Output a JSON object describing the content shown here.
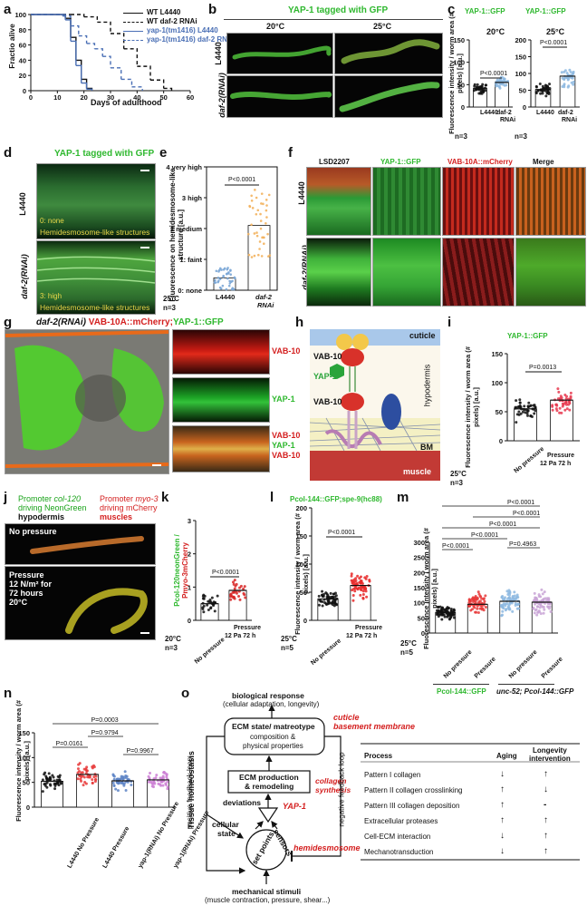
{
  "panels": {
    "a": "a",
    "b": "b",
    "c": "c",
    "d": "d",
    "e": "e",
    "f": "f",
    "g": "g",
    "h": "h",
    "i": "i",
    "j": "j",
    "k": "k",
    "l": "l",
    "m": "m",
    "n": "n",
    "o": "o"
  },
  "a": {
    "ylabel": "Fractio alive",
    "xlabel": "Days of adulthood",
    "legend": [
      "WT L4440",
      "WT daf-2 RNAi",
      "yap-1(tm1416) L4440",
      "yap-1(tm1416) daf-2 RNAi"
    ]
  },
  "b": {
    "title": "YAP-1 tagged with GFP",
    "col1": "20°C",
    "col2": "25°C",
    "row1": "L4440",
    "row2": "daf-2(RNAi)"
  },
  "c": {
    "title1": "YAP-1::GFP",
    "title2": "YAP-1::GFP",
    "sub1": "20°C",
    "sub2": "25°C",
    "ylabel": "Fluorescence intensity / worm area (# pixels) [a.u.]",
    "p1": "P<0.0001",
    "p2": "P<0.0001",
    "x1": "L4440",
    "x2": "daf-2 RNAi",
    "x3": "L4440",
    "x4": "daf-2 RNAi",
    "n1": "n=3",
    "n2": "n=3"
  },
  "d": {
    "title": "YAP-1 tagged with GFP",
    "row1": "L4440",
    "row2": "daf-2(RNAi)",
    "score1": "0: none",
    "score2": "3: high",
    "struct": "Hemidesmosome-like structures"
  },
  "e": {
    "ylabel": "Fluorescence on hemidesmosome-like structure [a.u.]",
    "levels": [
      "4 very high",
      "3 high",
      "2 medium",
      "1: faint",
      "0: none"
    ],
    "p": "P<0.0001",
    "x1": "L4440",
    "x2": "daf-2 RNAi",
    "temp": "25°C",
    "n": "n=3"
  },
  "f": {
    "cols": [
      "LSD2207",
      "YAP-1::GFP",
      "VAB-10A::mCherry",
      "Merge"
    ],
    "row1": "L4440",
    "row2": "daf-2(RNAi)"
  },
  "g": {
    "title_a": "daf-2(RNAi)",
    "title_b": "VAB-10A::mCherry;",
    "title_c": "YAP-1::GFP",
    "lab1": "VAB-10",
    "lab2": "YAP-1",
    "lab3a": "VAB-10",
    "lab3b": "YAP-1",
    "lab3c": "VAB-10"
  },
  "h": {
    "cuticle": "cuticle",
    "hypodermis": "hypodermis",
    "bm": "BM",
    "muscle": "muscle",
    "vab1": "VAB-10",
    "yap": "YAP-1",
    "vab2": "VAB-10"
  },
  "i": {
    "title": "YAP-1::GFP",
    "ylabel": "Fluorescence intensity / worm area (# pixels) [a.u.]",
    "p": "P=0.0013",
    "x1": "No pressure",
    "x2": "Pressure 12 Pa 72 h",
    "temp": "25°C",
    "n": "n=3"
  },
  "j": {
    "prom1a": "Promoter",
    "prom1b": "col-120",
    "prom1c": "driving NeonGreen",
    "prom1d": "hypodermis",
    "prom2a": "Promoter",
    "prom2b": "myo-3",
    "prom2c": "driving mCherry",
    "prom2d": "muscles",
    "top": "No pressure",
    "bot1": "Pressure",
    "bot2": "12 N/m² for",
    "bot3": "72 hours",
    "bot4": "20°C"
  },
  "k": {
    "ylabel_a": "Pcol-120neonGreen /",
    "ylabel_b": "Pmyo-3mCherry",
    "p": "P<0.0001",
    "x1": "No pressure",
    "x2": "Pressure 12 Pa 72 h",
    "temp": "20°C",
    "n": "n=3"
  },
  "l": {
    "title": "Pcol-144::GFP;spe-9(hc88)",
    "ylabel": "Fluorescence intensity / worm area (# pixels) [a.u.]",
    "p": "P<0.0001",
    "x1": "No pressure",
    "x2": "Pressure 12 Pa 72 h",
    "temp": "25°C",
    "n": "n=5"
  },
  "m": {
    "ylabel": "Fluorescence intensity / worm area (# pixels) [a.u.]",
    "p1": "P<0.0001",
    "p2": "P<0.0001",
    "p3": "P<0.0001",
    "p4": "P=0.4963",
    "p5": "P<0.0001",
    "p6": "P<0.0001",
    "x": [
      "No pressure",
      "Pressure",
      "No pressure",
      "Pressure"
    ],
    "g1": "Pcol-144::GFP",
    "g2": "unc-52; Pcol-144::GFP",
    "temp": "25°C",
    "n": "n=5"
  },
  "n": {
    "ylabel": "Fluorescence intensity / worm area (# pixels) [a.u.]",
    "p1": "P=0.0161",
    "p2": "P=0.9794",
    "p3": "P=0.9967",
    "p4": "P=0.0003",
    "x": [
      "L4440 No Pressure",
      "L4440 Pressure",
      "yap-1(RNAi) No Pressure",
      "yap-1(RNAi) Pressure"
    ]
  },
  "o": {
    "bio1": "biological response",
    "bio2": "(cellular adaptation, longevity)",
    "ecm1": "ECM state/ matreotype",
    "ecm2": "composition &",
    "ecm3": "physical properties",
    "cuticle1": "cuticle",
    "cuticle2": "basement membrane",
    "prod1": "ECM production",
    "prod2": "& remodeling",
    "coll1": "collagen",
    "coll2": "synthesis",
    "dev": "deviations",
    "yap": "YAP-1",
    "cell1": "cellular",
    "cell2": "state",
    "set": "set points",
    "sensors": "sensors",
    "hemi": "hemidesmosome",
    "tissue": "Tissue homeostasis",
    "pos": "positive feedback loop",
    "neg": "negative feedback loop",
    "mech1": "mechanical stimuli",
    "mech2": "(muscle contraction, pressure, shear...)",
    "table": {
      "h1": "Process",
      "h2": "Aging",
      "h3a": "Longevity",
      "h3b": "intervention",
      "rows": [
        {
          "p": "Pattern I collagen",
          "a": "↓",
          "l": "↑"
        },
        {
          "p": "Pattern II collagen crosslinking",
          "a": "↑",
          "l": "↓"
        },
        {
          "p": "Pattern III collagen deposition",
          "a": "↑",
          "l": "-"
        },
        {
          "p": "Extracellular proteases",
          "a": "↑",
          "l": "↑"
        },
        {
          "p": "Cell-ECM interaction",
          "a": "↓",
          "l": "↑"
        },
        {
          "p": "Mechanotransduction",
          "a": "↓",
          "l": "↑"
        }
      ]
    }
  },
  "chart_data": [
    {
      "type": "line",
      "panel": "a",
      "xlabel": "Days of adulthood",
      "ylabel": "Fractio alive",
      "xlim": [
        0,
        60
      ],
      "ylim": [
        0,
        100
      ],
      "x_ticks": [
        0,
        10,
        20,
        30,
        40,
        50,
        60
      ],
      "y_ticks": [
        0,
        20,
        40,
        60,
        80,
        100
      ],
      "series": [
        {
          "name": "WT L4440",
          "color": "#111111",
          "dash": "solid",
          "x": [
            0,
            10,
            13,
            15,
            17,
            19,
            21,
            23
          ],
          "y": [
            100,
            100,
            95,
            70,
            40,
            15,
            3,
            0
          ]
        },
        {
          "name": "WT daf-2 RNAi",
          "color": "#111111",
          "dash": "dashed",
          "x": [
            0,
            15,
            20,
            25,
            30,
            35,
            40,
            45,
            50,
            53
          ],
          "y": [
            100,
            100,
            97,
            90,
            75,
            55,
            32,
            14,
            3,
            0
          ]
        },
        {
          "name": "yap-1(tm1416) L4440",
          "color": "#4a6fb5",
          "dash": "solid",
          "x": [
            0,
            10,
            13,
            15,
            17,
            19,
            21,
            23
          ],
          "y": [
            100,
            100,
            93,
            65,
            33,
            10,
            2,
            0
          ]
        },
        {
          "name": "yap-1(tm1416) daf-2 RNAi",
          "color": "#4a6fb5",
          "dash": "dashed",
          "x": [
            0,
            12,
            15,
            18,
            21,
            24,
            27,
            30,
            34,
            38,
            42
          ],
          "y": [
            100,
            98,
            85,
            72,
            62,
            55,
            45,
            30,
            15,
            5,
            0
          ]
        }
      ]
    },
    {
      "type": "bar",
      "panel": "c-20",
      "categories": [
        "L4440",
        "daf-2 RNAi"
      ],
      "values": [
        42,
        55
      ],
      "ylim": [
        0,
        150
      ],
      "y_ticks": [
        0,
        50,
        100,
        150
      ]
    },
    {
      "type": "bar",
      "panel": "c-25",
      "categories": [
        "L4440",
        "daf-2 RNAi"
      ],
      "values": [
        52,
        92
      ],
      "ylim": [
        0,
        200
      ],
      "y_ticks": [
        0,
        50,
        100,
        150,
        200
      ]
    },
    {
      "type": "bar",
      "panel": "e",
      "categories": [
        "L4440",
        "daf-2 RNAi"
      ],
      "values": [
        0.4,
        2.1
      ],
      "ylim": [
        0,
        4
      ]
    },
    {
      "type": "bar",
      "panel": "i",
      "categories": [
        "No pressure",
        "Pressure 12 Pa 72 h"
      ],
      "values": [
        55,
        70
      ],
      "ylim": [
        0,
        150
      ],
      "y_ticks": [
        0,
        50,
        100,
        150
      ]
    },
    {
      "type": "bar",
      "panel": "k",
      "categories": [
        "No pressure",
        "Pressure 12 Pa 72 h"
      ],
      "values": [
        0.5,
        0.9
      ],
      "ylim": [
        0,
        3
      ],
      "y_ticks": [
        0,
        1,
        2,
        3
      ]
    },
    {
      "type": "bar",
      "panel": "l",
      "categories": [
        "No pressure",
        "Pressure 12 Pa 72 h"
      ],
      "values": [
        38,
        62
      ],
      "ylim": [
        0,
        200
      ],
      "y_ticks": [
        0,
        50,
        100,
        150,
        200
      ]
    },
    {
      "type": "bar",
      "panel": "m",
      "categories": [
        "No pressure",
        "Pressure",
        "No pressure",
        "Pressure"
      ],
      "values": [
        68,
        95,
        105,
        102
      ],
      "ylim": [
        0,
        300
      ],
      "y_ticks": [
        0,
        50,
        100,
        150,
        200,
        250,
        300
      ]
    },
    {
      "type": "bar",
      "panel": "n",
      "categories": [
        "L4440 No Pressure",
        "L4440 Pressure",
        "yap-1(RNAi) No Pressure",
        "yap-1(RNAi) Pressure"
      ],
      "values": [
        52,
        66,
        53,
        55
      ],
      "ylim": [
        0,
        150
      ],
      "y_ticks": [
        0,
        50,
        100,
        150
      ]
    }
  ]
}
